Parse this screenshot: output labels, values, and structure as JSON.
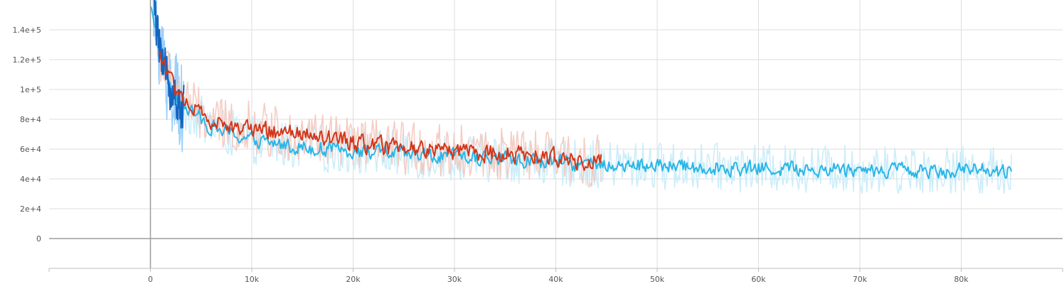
{
  "chart_data": {
    "type": "line",
    "title": "",
    "xlabel": "",
    "ylabel": "",
    "xlim": [
      -10000,
      90000
    ],
    "ylim": [
      -20000,
      160000
    ],
    "x_ticks": [
      0,
      10000,
      20000,
      30000,
      40000,
      50000,
      60000,
      70000,
      80000
    ],
    "x_tick_labels": [
      "0",
      "10k",
      "20k",
      "30k",
      "40k",
      "50k",
      "60k",
      "70k",
      "80k"
    ],
    "y_ticks": [
      0,
      20000,
      40000,
      60000,
      80000,
      100000,
      120000,
      140000
    ],
    "y_tick_labels": [
      "0",
      "2e+4",
      "4e+4",
      "6e+4",
      "8e+4",
      "1e+5",
      "1.2e+5",
      "1.4e+5"
    ],
    "grid": true,
    "legend": "none",
    "series": [
      {
        "color": "#29b6e8",
        "raw_color": "#c7ebf8",
        "x": [
          0,
          500,
          1000,
          1500,
          2000,
          2500,
          3000,
          4000,
          5000,
          6000,
          7000,
          8000,
          9000,
          10000,
          12000,
          14000,
          16000,
          18000,
          20000,
          22000,
          24000,
          26000,
          28000,
          30000,
          32000,
          34000,
          36000,
          38000,
          40000,
          42000,
          44000,
          46000,
          48000,
          50000,
          52000,
          54000,
          56000,
          58000,
          60000,
          62000,
          64000,
          66000,
          68000,
          70000,
          72000,
          74000,
          76000,
          78000,
          80000,
          82000,
          84000,
          85000
        ],
        "y": [
          160000,
          140000,
          125000,
          110000,
          100000,
          95000,
          90000,
          85000,
          80000,
          75000,
          72000,
          70000,
          68000,
          66000,
          64000,
          62000,
          61000,
          60000,
          59000,
          58000,
          57000,
          56000,
          55000,
          55000,
          54000,
          54000,
          53000,
          52000,
          51000,
          50000,
          50000,
          49000,
          49000,
          49000,
          48000,
          48000,
          48000,
          47000,
          47000,
          47000,
          47000,
          47000,
          47000,
          46000,
          46000,
          46000,
          46000,
          46000,
          46000,
          46000,
          45000,
          45000
        ],
        "noise": 7000,
        "raw_noise": 16000
      },
      {
        "color": "#1565c0",
        "raw_color": "#90caf9",
        "x": [
          300,
          600,
          900,
          1200,
          1500,
          1800,
          2100,
          2400,
          2700,
          3000,
          3300
        ],
        "y": [
          160000,
          140000,
          130000,
          120000,
          112000,
          105000,
          100000,
          96000,
          92000,
          89000,
          86000
        ],
        "noise": 22000,
        "raw_noise": 30000
      },
      {
        "color": "#d2361a",
        "raw_color": "#f4c7bc",
        "x": [
          800,
          1500,
          2500,
          3500,
          4500,
          5500,
          6500,
          7500,
          8500,
          10000,
          12000,
          14000,
          16000,
          18000,
          20000,
          22000,
          24000,
          26000,
          28000,
          30000,
          32000,
          34000,
          36000,
          38000,
          40000,
          42000,
          44000,
          44500
        ],
        "y": [
          125000,
          112000,
          100000,
          92000,
          85000,
          80000,
          77000,
          75000,
          76000,
          74000,
          72000,
          70000,
          68000,
          66000,
          64000,
          62000,
          61000,
          60000,
          60000,
          59000,
          58000,
          57000,
          56000,
          55000,
          54000,
          53000,
          52000,
          52000
        ],
        "noise": 8500,
        "raw_noise": 18000
      }
    ]
  }
}
